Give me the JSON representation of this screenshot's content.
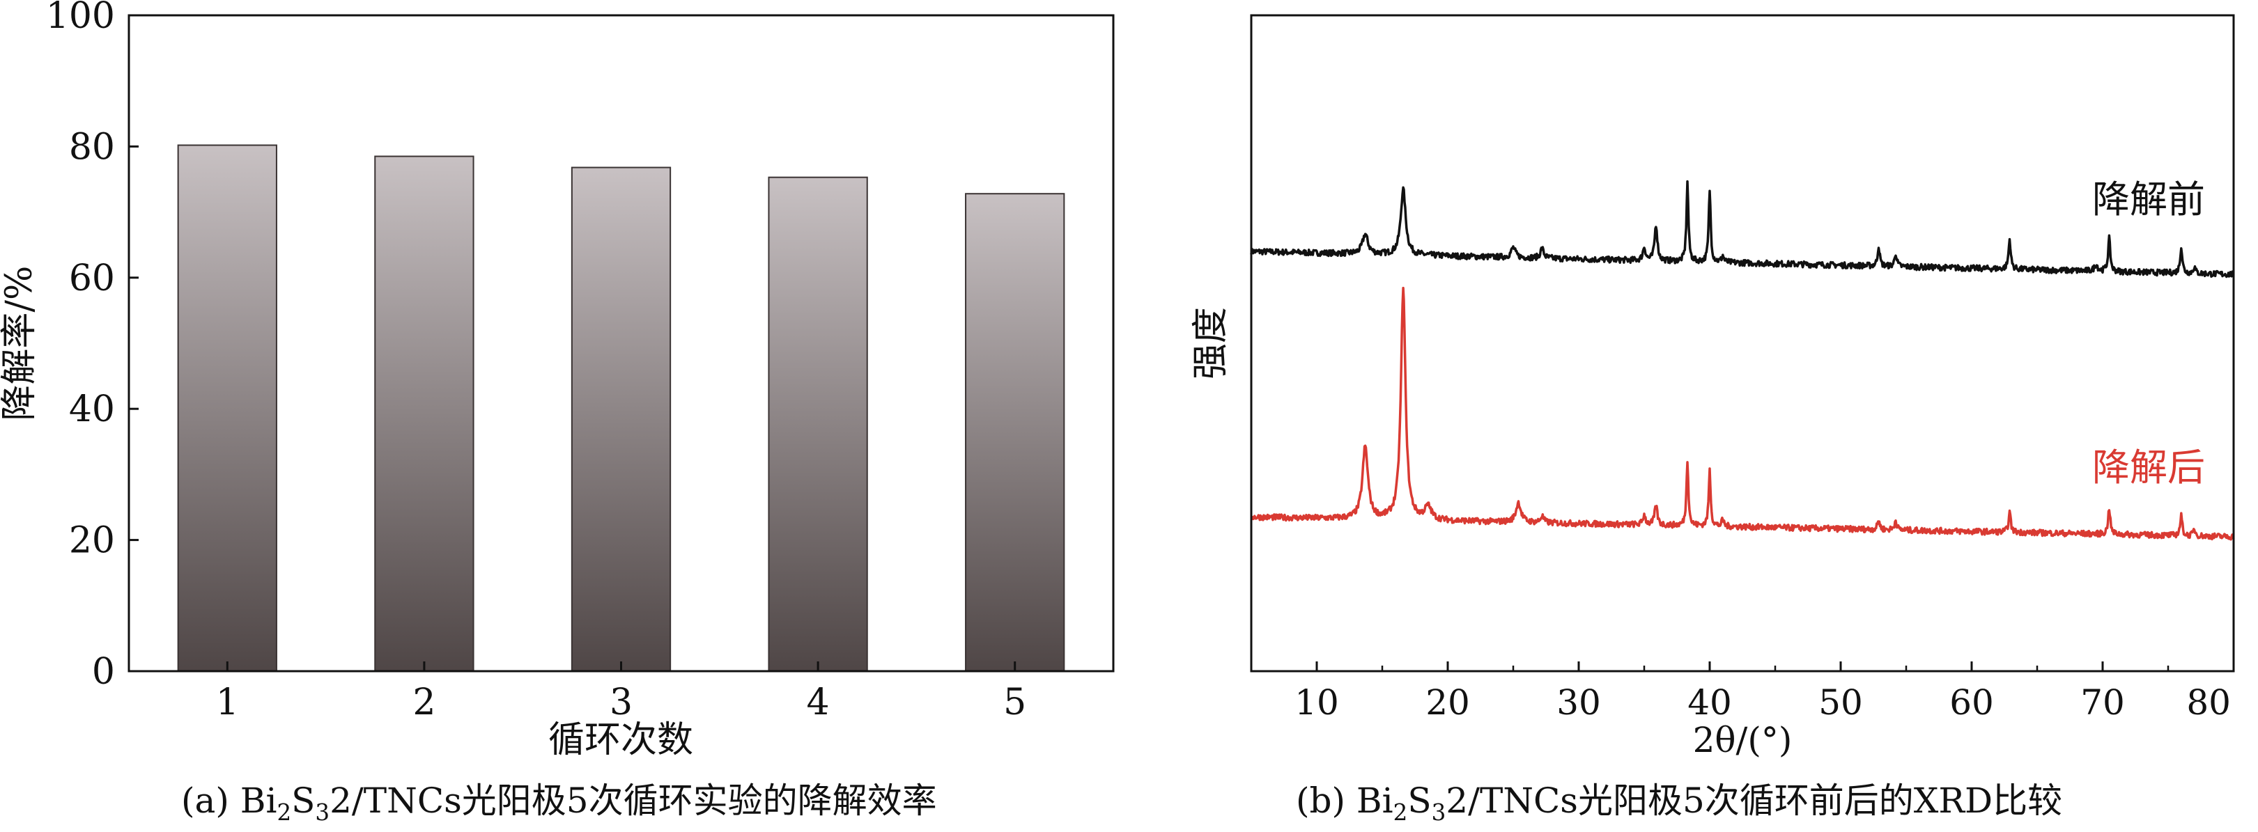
{
  "chart_data": [
    {
      "type": "bar",
      "panel": "a",
      "categories": [
        "1",
        "2",
        "3",
        "4",
        "5"
      ],
      "values": [
        80.2,
        78.5,
        76.8,
        75.3,
        72.8
      ],
      "xlabel": "循环次数",
      "ylabel": "降解率/%",
      "ylim": [
        0,
        100
      ],
      "yticks": [
        0,
        20,
        40,
        60,
        80,
        100
      ],
      "grid": false,
      "legend": "none",
      "bar_gradient": [
        "#c8c1c3",
        "#4f4646"
      ],
      "caption_parts": [
        "(a) Bi",
        "2",
        "S",
        "3",
        "2/TNCs光阳极5次循环实验的降解效率"
      ]
    },
    {
      "type": "line",
      "panel": "b",
      "xlabel": "2θ/(°)",
      "ylabel": "强度",
      "xlim": [
        5,
        80
      ],
      "xticks": [
        10,
        20,
        30,
        40,
        50,
        60,
        70,
        80
      ],
      "y_tick_labels_shown": false,
      "grid": false,
      "legend": "inline labels at right end of each trace",
      "series": [
        {
          "name": "降解前",
          "color": "#111111",
          "baseline": 6.4,
          "baseline_end": 6.05,
          "peaks": [
            [
              13.7,
              0.3,
              0.5
            ],
            [
              16.6,
              1.0,
              0.45
            ],
            [
              25.0,
              0.15,
              0.4
            ],
            [
              27.2,
              0.15,
              0.3
            ],
            [
              35.0,
              0.2,
              0.25
            ],
            [
              35.9,
              0.55,
              0.25
            ],
            [
              38.3,
              1.2,
              0.18
            ],
            [
              40.0,
              1.1,
              0.18
            ],
            [
              41.0,
              0.1,
              0.2
            ],
            [
              52.9,
              0.3,
              0.2
            ],
            [
              54.2,
              0.2,
              0.2
            ],
            [
              62.9,
              0.45,
              0.2
            ],
            [
              69.5,
              0.1,
              0.3
            ],
            [
              70.5,
              0.5,
              0.2
            ],
            [
              76.0,
              0.4,
              0.2
            ],
            [
              77.0,
              0.1,
              0.2
            ]
          ]
        },
        {
          "name": "降解后",
          "color": "#d93a32",
          "baseline": 2.35,
          "baseline_end": 2.05,
          "peaks": [
            [
              13.7,
              1.1,
              0.5
            ],
            [
              16.6,
              3.5,
              0.42
            ],
            [
              18.5,
              0.2,
              0.6
            ],
            [
              25.4,
              0.3,
              0.45
            ],
            [
              27.2,
              0.1,
              0.3
            ],
            [
              35.0,
              0.15,
              0.25
            ],
            [
              35.9,
              0.3,
              0.25
            ],
            [
              38.3,
              1.0,
              0.18
            ],
            [
              40.0,
              0.85,
              0.18
            ],
            [
              41.0,
              0.1,
              0.2
            ],
            [
              52.9,
              0.15,
              0.2
            ],
            [
              54.2,
              0.15,
              0.2
            ],
            [
              62.9,
              0.3,
              0.2
            ],
            [
              70.5,
              0.4,
              0.2
            ],
            [
              76.0,
              0.3,
              0.2
            ],
            [
              77.0,
              0.1,
              0.2
            ]
          ]
        }
      ],
      "caption_parts": [
        "(b) Bi",
        "2",
        "S",
        "3",
        "2/TNCs光阳极5次循环前后的XRD比较"
      ]
    }
  ]
}
